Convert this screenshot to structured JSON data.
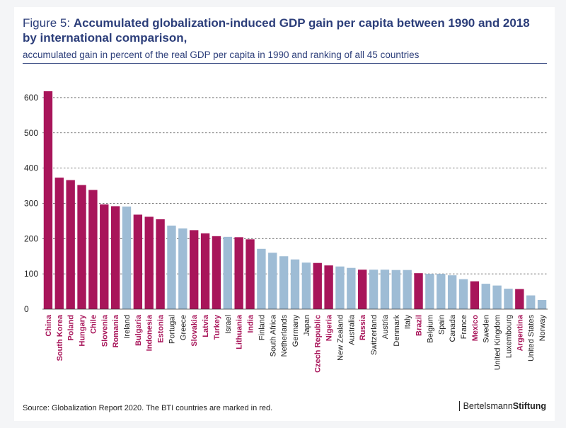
{
  "header": {
    "figure_label": "Figure 5:",
    "title": "Accumulated globalization-induced GDP gain per capita between 1990 and 2018 by international comparison,",
    "subtitle": "accumulated gain in percent of the real GDP per capita in 1990 and ranking of all 45 countries"
  },
  "footer": {
    "source": "Source: Globalization Report 2020. The BTI countries are marked in red.",
    "brand_regular": "Bertelsmann",
    "brand_bold": "Stiftung"
  },
  "colors": {
    "bti": "#a8155a",
    "other": "#9ebcd5",
    "text": "#2c3e7a",
    "grid": "#555555"
  },
  "chart_data": {
    "type": "bar",
    "title": "",
    "xlabel": "",
    "ylabel": "",
    "ylim": [
      0,
      640
    ],
    "yticks": [
      0,
      100,
      200,
      300,
      400,
      500,
      600
    ],
    "grid": true,
    "categories": [
      "China",
      "South Korea",
      "Poland",
      "Hungary",
      "Chile",
      "Slovenia",
      "Romania",
      "Ireland",
      "Bulgaria",
      "Indonesia",
      "Estonia",
      "Portugal",
      "Greece",
      "Slovakia",
      "Latvia",
      "Turkey",
      "Israel",
      "Lithuania",
      "India",
      "Finland",
      "South Africa",
      "Netherlands",
      "Germany",
      "Japan",
      "Czech Republic",
      "Nigeria",
      "New Zealand",
      "Australia",
      "Russia",
      "Switzerland",
      "Austria",
      "Denmark",
      "Italy",
      "Brazil",
      "Belgium",
      "Spain",
      "Canada",
      "France",
      "Mexico",
      "Sweden",
      "United Kingdom",
      "Luxembourg",
      "Argentina",
      "United States",
      "Norway"
    ],
    "values": [
      618,
      373,
      366,
      352,
      338,
      297,
      292,
      291,
      268,
      262,
      255,
      237,
      229,
      224,
      215,
      207,
      205,
      204,
      198,
      171,
      160,
      150,
      141,
      132,
      131,
      124,
      121,
      117,
      112,
      112,
      112,
      111,
      111,
      102,
      100,
      100,
      96,
      85,
      79,
      72,
      67,
      58,
      57,
      39,
      26
    ],
    "bti": [
      true,
      true,
      true,
      true,
      true,
      true,
      true,
      false,
      true,
      true,
      true,
      false,
      false,
      true,
      true,
      true,
      false,
      true,
      true,
      false,
      false,
      false,
      false,
      false,
      true,
      true,
      false,
      false,
      true,
      false,
      false,
      false,
      false,
      true,
      false,
      false,
      false,
      false,
      true,
      false,
      false,
      false,
      true,
      false,
      false
    ]
  }
}
